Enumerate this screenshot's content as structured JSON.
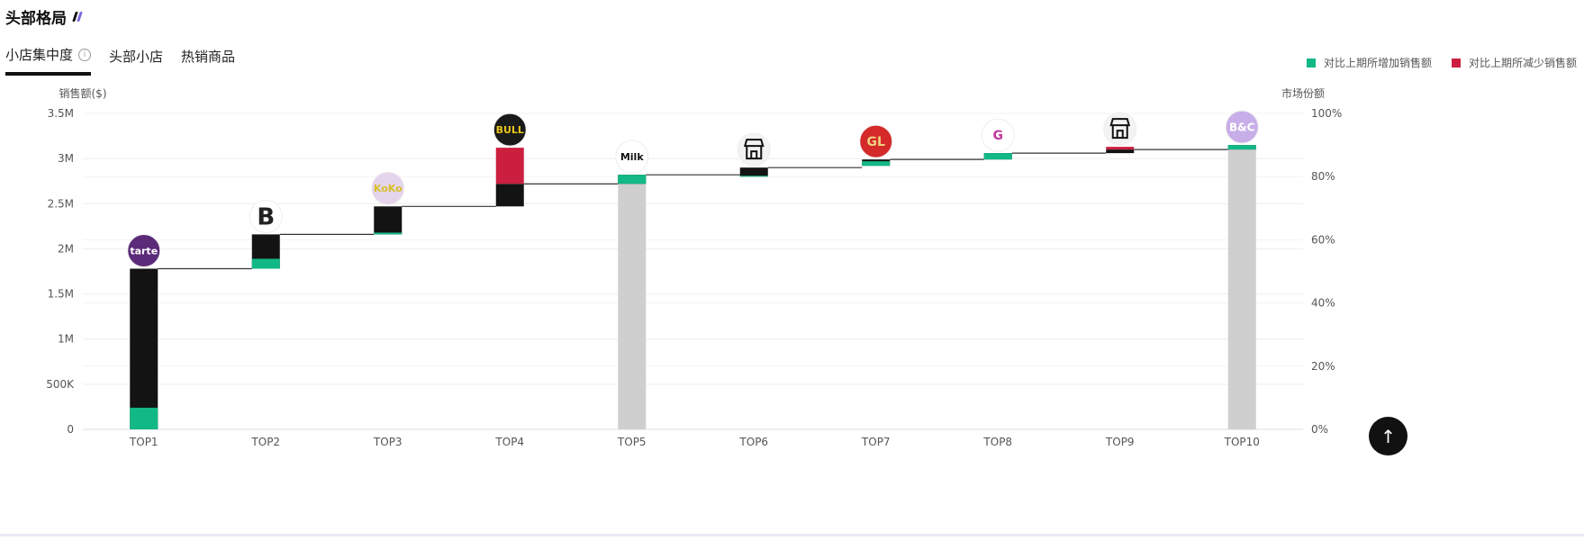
{
  "header": {
    "title": "头部格局"
  },
  "tabs": [
    {
      "label": "小店集中度",
      "active": true,
      "info": "i"
    },
    {
      "label": "头部小店"
    },
    {
      "label": "热销商品"
    }
  ],
  "legend": [
    {
      "label": "对比上期所增加销售额",
      "color": "#12b886"
    },
    {
      "label": "对比上期所减少销售额",
      "color": "#cc1f3f"
    }
  ],
  "back_to_top": "↑",
  "chart_data": {
    "type": "waterfall",
    "ylabel": "销售额($)",
    "y2label": "市场份额",
    "ylim": [
      0,
      3.5
    ],
    "y_ticks": [
      "0",
      "500K",
      "1M",
      "1.5M",
      "2M",
      "2.5M",
      "3M",
      "3.5M"
    ],
    "y2_ticks": [
      "0%",
      "20%",
      "40%",
      "60%",
      "80%",
      "100%"
    ],
    "colors": {
      "sales": "#131313",
      "increase": "#12b886",
      "decrease": "#cc1f3f",
      "base": "#cfcfcf",
      "grid": "#eeeeee"
    },
    "bars": [
      {
        "label": "TOP1",
        "start": 0,
        "end": 1.78,
        "increase": 0.24,
        "decrease": 0,
        "base": false,
        "logo": "tarte",
        "logo_bg": "#5b2a78",
        "logo_fg": "#ffffff"
      },
      {
        "label": "TOP2",
        "start": 1.78,
        "end": 2.16,
        "increase": 0.11,
        "decrease": 0,
        "base": false,
        "logo": "B",
        "logo_bg": "#ffffff",
        "logo_fg": "#222222"
      },
      {
        "label": "TOP3",
        "start": 2.16,
        "end": 2.47,
        "increase": 0.02,
        "decrease": 0,
        "base": false,
        "logo": "KoKo",
        "logo_bg": "#e4d4ec",
        "logo_fg": "#d8c02a"
      },
      {
        "label": "TOP4",
        "start": 2.47,
        "end": 2.72,
        "increase": 0,
        "decrease": 0.4,
        "base": false,
        "logo": "BULL",
        "logo_bg": "#1a1a1a",
        "logo_fg": "#e8c51c"
      },
      {
        "label": "TOP5",
        "start": 2.72,
        "end": 2.82,
        "increase": 0.1,
        "decrease": 0,
        "base": true,
        "logo": "Milk",
        "logo_bg": "#ffffff",
        "logo_fg": "#111111"
      },
      {
        "label": "TOP6",
        "start": 2.8,
        "end": 2.9,
        "increase": 0.01,
        "decrease": 0,
        "base": false,
        "logo": "store",
        "logo_bg": "#f3f3f3",
        "logo_fg": "#111111"
      },
      {
        "label": "TOP7",
        "start": 2.92,
        "end": 2.99,
        "increase": 0.05,
        "decrease": 0,
        "base": false,
        "logo": "GL",
        "logo_bg": "#d42a2a",
        "logo_fg": "#f0d080"
      },
      {
        "label": "TOP8",
        "start": 2.99,
        "end": 3.06,
        "increase": 0.07,
        "decrease": 0,
        "base": false,
        "logo": "G",
        "logo_bg": "#ffffff",
        "logo_fg": "#c23a9a"
      },
      {
        "label": "TOP9",
        "start": 3.06,
        "end": 3.1,
        "increase": 0,
        "decrease": 0.03,
        "base": false,
        "logo": "store",
        "logo_bg": "#f3f3f3",
        "logo_fg": "#111111"
      },
      {
        "label": "TOP10",
        "start": 3.1,
        "end": 3.15,
        "increase": 0.05,
        "decrease": 0,
        "base": true,
        "logo": "B&C",
        "logo_bg": "#c8aee8",
        "logo_fg": "#ffffff"
      }
    ]
  }
}
